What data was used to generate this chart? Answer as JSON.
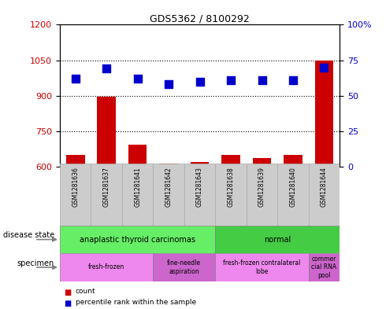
{
  "title": "GDS5362 / 8100292",
  "samples": [
    "GSM1281636",
    "GSM1281637",
    "GSM1281641",
    "GSM1281642",
    "GSM1281643",
    "GSM1281638",
    "GSM1281639",
    "GSM1281640",
    "GSM1281644"
  ],
  "counts": [
    650,
    895,
    695,
    615,
    622,
    650,
    638,
    650,
    1050
  ],
  "percentiles": [
    62,
    69,
    62,
    58,
    60,
    61,
    61,
    61,
    70
  ],
  "ylim_left": [
    600,
    1200
  ],
  "ylim_right": [
    0,
    100
  ],
  "yticks_left": [
    600,
    750,
    900,
    1050,
    1200
  ],
  "yticks_right": [
    0,
    25,
    50,
    75,
    100
  ],
  "bar_color": "#cc0000",
  "dot_color": "#0000cc",
  "disease_state_groups": [
    {
      "label": "anaplastic thyroid carcinomas",
      "start": 0,
      "end": 5,
      "color": "#66ee66"
    },
    {
      "label": "normal",
      "start": 5,
      "end": 9,
      "color": "#44cc44"
    }
  ],
  "specimen_groups": [
    {
      "label": "fresh-frozen",
      "start": 0,
      "end": 3,
      "color": "#ee88ee"
    },
    {
      "label": "fine-needle\naspiration",
      "start": 3,
      "end": 5,
      "color": "#cc66cc"
    },
    {
      "label": "fresh-frozen contralateral\nlobe",
      "start": 5,
      "end": 8,
      "color": "#ee88ee"
    },
    {
      "label": "commer\ncial RNA\npool",
      "start": 8,
      "end": 9,
      "color": "#cc66cc"
    }
  ],
  "legend_count_color": "#cc0000",
  "legend_percentile_color": "#0000cc",
  "tick_label_color_left": "#cc0000",
  "tick_label_color_right": "#0000cc",
  "bar_width": 0.6,
  "dot_size": 50,
  "sample_box_color": "#cccccc",
  "sample_box_edge_color": "#aaaaaa"
}
